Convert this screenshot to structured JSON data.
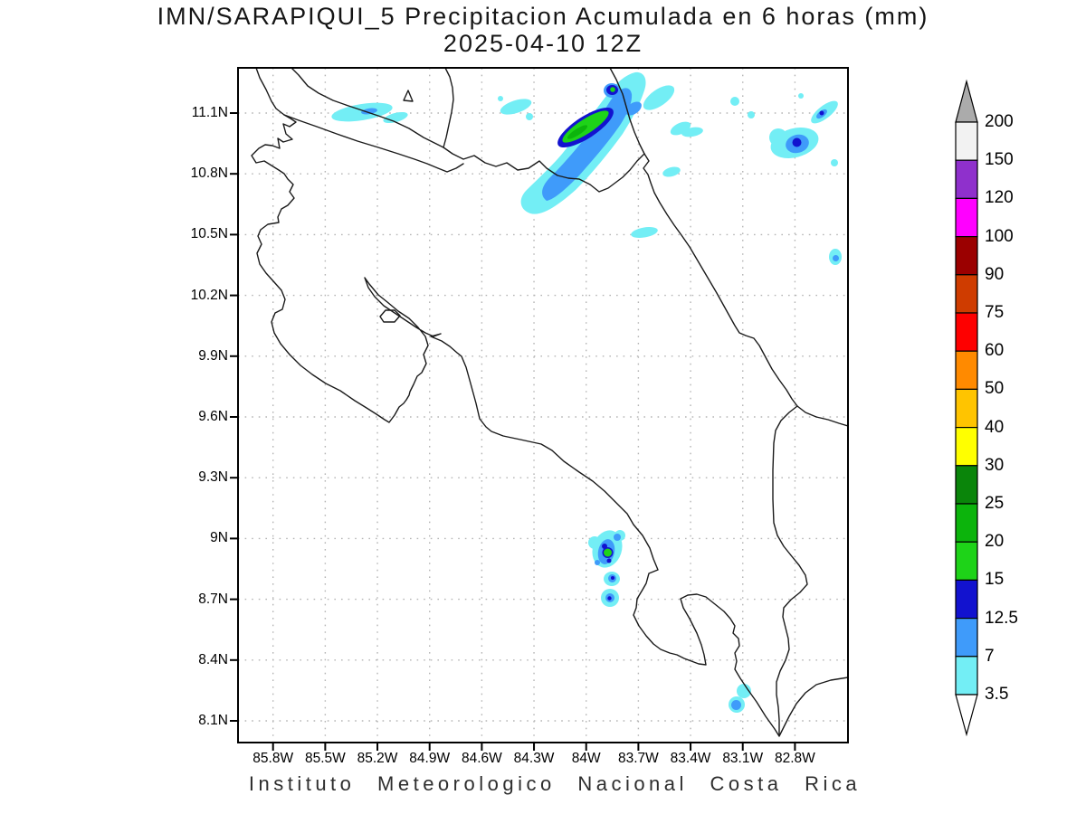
{
  "title": {
    "line1": "IMN/SARAPIQUI_5 Precipitacion Acumulada en 6 horas (mm)",
    "line2": "2025-04-10 12Z"
  },
  "footer": "Instituto Meteorologico Nacional Costa Rica",
  "axes": {
    "lat_ticks": [
      "11.1N",
      "10.8N",
      "10.5N",
      "10.2N",
      "9.9N",
      "9.6N",
      "9.3N",
      "9N",
      "8.7N",
      "8.4N",
      "8.1N"
    ],
    "lon_ticks": [
      "85.8W",
      "85.5W",
      "85.2W",
      "84.9W",
      "84.6W",
      "84.3W",
      "84W",
      "83.7W",
      "83.4W",
      "83.1W",
      "82.8W"
    ]
  },
  "colorbar": {
    "labels": [
      "200",
      "150",
      "120",
      "100",
      "90",
      "75",
      "60",
      "50",
      "40",
      "30",
      "25",
      "20",
      "15",
      "12.5",
      "7",
      "3.5"
    ],
    "segment_colors": [
      "#f2f2f2",
      "#8f30cc",
      "#ff00ff",
      "#9b0000",
      "#cf3c00",
      "#fe0000",
      "#ff8a00",
      "#ffc400",
      "#ffff00",
      "#0a850a",
      "#0cb40c",
      "#1ed318",
      "#1212cf",
      "#3f9bfa",
      "#73eef5"
    ],
    "above_color": "#ababab",
    "below_color": "#ffffff"
  },
  "chart_data": {
    "type": "heatmap",
    "subtype": "filled-contour precipitation map (GrADS style)",
    "title": "IMN/SARAPIQUI_5 Precipitacion Acumulada en 6 horas (mm)",
    "valid_time": "2025-04-10 12Z",
    "units": "mm",
    "region": "Costa Rica",
    "xlabel_ticks": [
      "85.8W",
      "85.5W",
      "85.2W",
      "84.9W",
      "84.6W",
      "84.3W",
      "84W",
      "83.7W",
      "83.4W",
      "83.1W",
      "82.8W"
    ],
    "ylabel_ticks": [
      "11.1N",
      "10.8N",
      "10.5N",
      "10.2N",
      "9.9N",
      "9.6N",
      "9.3N",
      "9N",
      "8.7N",
      "8.4N",
      "8.1N"
    ],
    "lon_range_deg_west": [
      86.0,
      82.5
    ],
    "lat_range_deg_north": [
      8.0,
      11.32
    ],
    "grid": "dotted gray lat-lon grid every 0.3 degrees",
    "legend_position": "right vertical colorbar with end arrows",
    "contour_levels_mm": [
      3.5,
      7,
      12.5,
      15,
      20,
      25,
      30,
      40,
      50,
      60,
      75,
      90,
      100,
      120,
      150,
      200
    ],
    "level_colors_low_to_high": [
      "#73eef5",
      "#3f9bfa",
      "#1212cf",
      "#1ed318",
      "#0cb40c",
      "#0a850a",
      "#ffff00",
      "#ffc400",
      "#ff8a00",
      "#fe0000",
      "#cf3c00",
      "#9b0000",
      "#ff00ff",
      "#8f30cc",
      "#f2f2f2",
      "#ababab"
    ],
    "features": [
      {
        "name": "main rain band",
        "location": "~84.0W 11.03N along Nicaragua border / San Juan delta",
        "orientation": "SW-NE elongated",
        "peak_category_mm": "20-25 (green core inside 15 blue ring, 7-12.5 halo)"
      },
      {
        "name": "small core on band NE end",
        "location": "~83.85W 11.24N",
        "peak_category_mm": "15-20"
      },
      {
        "name": "NW streak",
        "location": "~85.25W 11.05N over Lake Nicaragua shore",
        "peak_category_mm": "7-12.5"
      },
      {
        "name": "small streak",
        "location": "~84.4W 11.07N",
        "peak_category_mm": "3.5-7"
      },
      {
        "name": "NE Caribbean cluster",
        "location": "~82.8W 10.95N",
        "peak_category_mm": "12.5-15"
      },
      {
        "name": "Caribbean coastal dot",
        "location": "~82.77W 10.39N",
        "peak_category_mm": "7-12.5"
      },
      {
        "name": "inland streak",
        "location": "~83.65W 10.51N",
        "peak_category_mm": "3.5-7"
      },
      {
        "name": "southern Pacific cluster",
        "location": "~83.88W 8.75-9.0N (3 cells)",
        "peak_category_mm": "15-20 tiny green core"
      },
      {
        "name": "far-south coastal cell",
        "location": "~83.1W 8.2N",
        "peak_category_mm": "7-12.5"
      }
    ]
  }
}
